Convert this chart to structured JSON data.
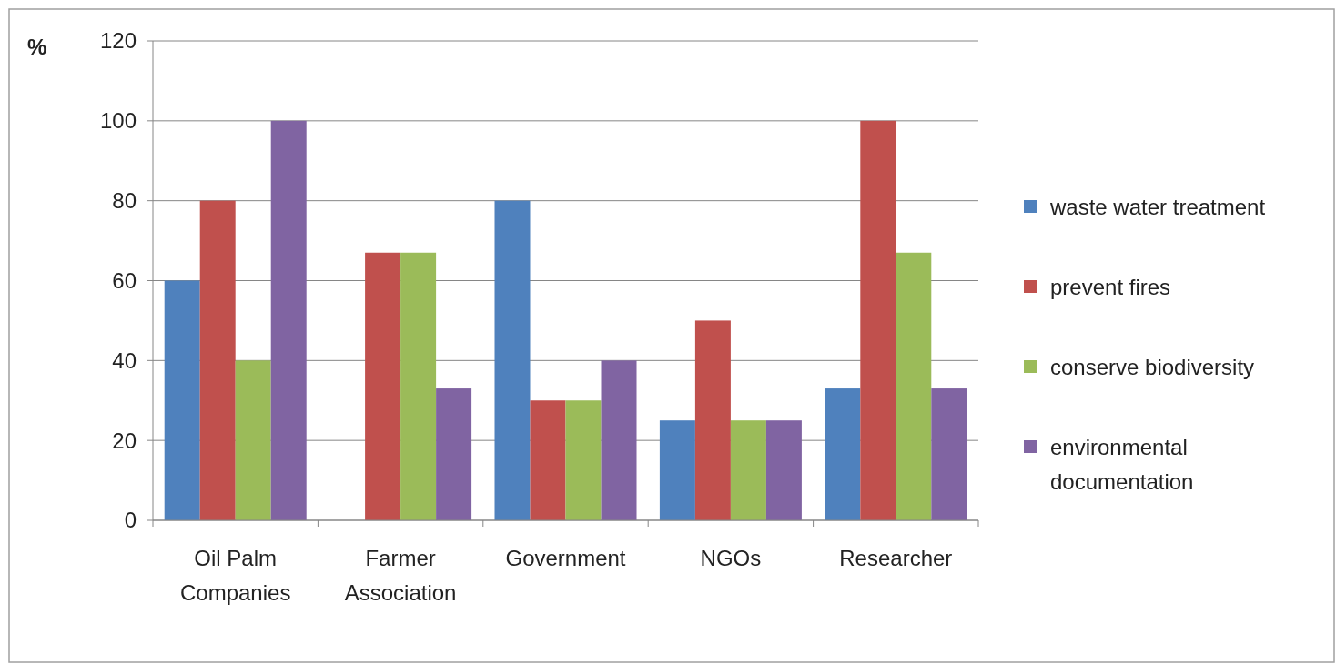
{
  "chart_data": {
    "type": "bar",
    "ylabel": "%",
    "categories": [
      "Oil Palm Companies",
      "Farmer Association",
      "Government",
      "NGOs",
      "Researcher"
    ],
    "series": [
      {
        "name": "waste water treatment",
        "color": "#4f81bd",
        "values": [
          60,
          0,
          80,
          25,
          33
        ]
      },
      {
        "name": "prevent fires",
        "color": "#c0504d",
        "values": [
          80,
          67,
          30,
          50,
          100
        ]
      },
      {
        "name": "conserve biodiversity",
        "color": "#9bbb59",
        "values": [
          40,
          67,
          30,
          25,
          67
        ]
      },
      {
        "name": "environmental documentation",
        "color": "#8064a2",
        "values": [
          100,
          33,
          40,
          25,
          33
        ]
      }
    ],
    "ylim": [
      0,
      120
    ],
    "yticks": [
      0,
      20,
      40,
      60,
      80,
      100,
      120
    ],
    "grid": "y",
    "legend": "right"
  }
}
